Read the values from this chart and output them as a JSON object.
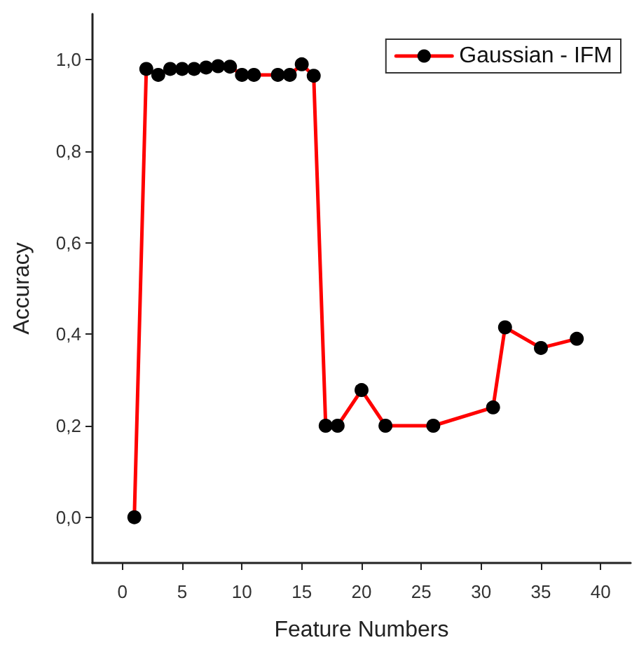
{
  "chart_data": {
    "type": "line",
    "xlabel": "Feature Numbers",
    "ylabel": "Accuracy",
    "series": [
      {
        "name": "Gaussian - IFM",
        "color": "#ff0000",
        "x": [
          1,
          2,
          3,
          4,
          5,
          6,
          7,
          8,
          9,
          10,
          11,
          13,
          14,
          15,
          16,
          17,
          18,
          20,
          22,
          26,
          31,
          32,
          35,
          38
        ],
        "values": [
          0,
          0.98,
          0.967,
          0.98,
          0.98,
          0.98,
          0.983,
          0.986,
          0.985,
          0.967,
          0.967,
          0.967,
          0.967,
          0.99,
          0.965,
          0.2,
          0.2,
          0.278,
          0.2,
          0.2,
          0.24,
          0.415,
          0.37,
          0.39
        ]
      }
    ],
    "xlim": [
      -2.5,
      42.5
    ],
    "xticks": [
      0,
      5,
      10,
      15,
      20,
      25,
      30,
      35,
      40
    ],
    "ylim": [
      -0.1,
      1.1
    ],
    "yticks": [
      {
        "value": 0,
        "label": "0,0"
      },
      {
        "value": 0.2,
        "label": "0,2"
      },
      {
        "value": 0.4,
        "label": "0,4"
      },
      {
        "value": 0.6,
        "label": "0,6"
      },
      {
        "value": 0.8,
        "label": "0,8"
      },
      {
        "value": 1,
        "label": "1,0"
      }
    ],
    "grid": false,
    "legend": "top right",
    "marker": "circle",
    "line_style": "solid"
  }
}
